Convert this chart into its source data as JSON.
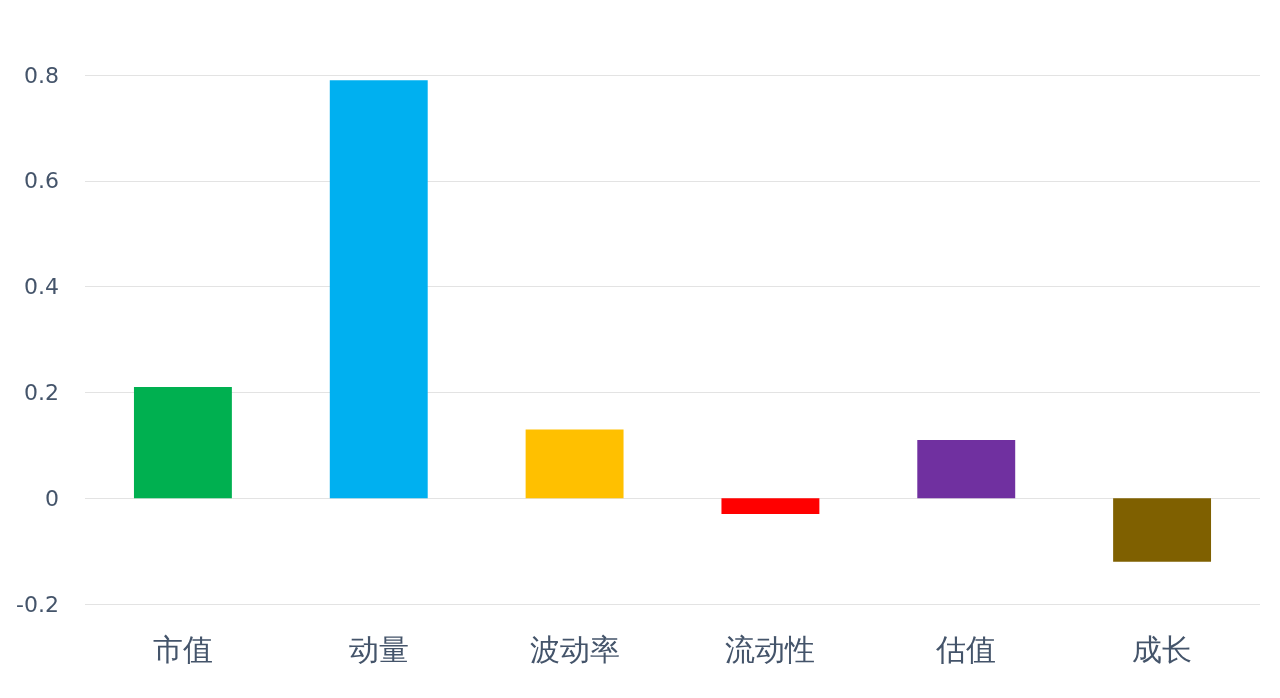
{
  "chart_data": {
    "type": "bar",
    "categories": [
      "市值",
      "动量",
      "波动率",
      "流动性",
      "估值",
      "成长"
    ],
    "values": [
      0.21,
      0.79,
      0.13,
      -0.03,
      0.11,
      -0.12
    ],
    "colors": [
      "#00b050",
      "#00b0f0",
      "#ffc000",
      "#ff0000",
      "#7030a0",
      "#7f6000"
    ],
    "ylim": [
      -0.2,
      0.8
    ],
    "yticks": [
      -0.2,
      0,
      0.2,
      0.4,
      0.6,
      0.8
    ],
    "grid": "y"
  }
}
